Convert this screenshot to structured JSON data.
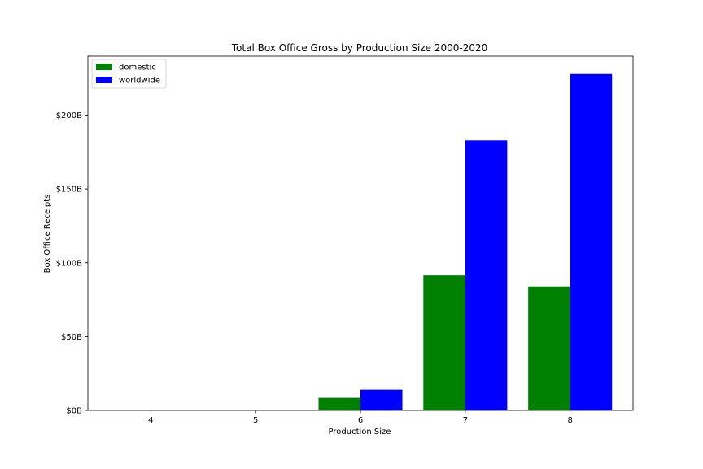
{
  "chart_data": {
    "type": "bar",
    "title": "Total Box Office Gross by Production Size 2000-2020",
    "xlabel": "Production Size",
    "ylabel": "Box Office Receipts",
    "categories": [
      "4",
      "5",
      "6",
      "7",
      "8"
    ],
    "series": [
      {
        "name": "domestic",
        "color": "#008000",
        "values": [
          0.0,
          0.0,
          8.5,
          91.5,
          84.0
        ]
      },
      {
        "name": "worldwide",
        "color": "#0000ff",
        "values": [
          0.0,
          0.0,
          14.0,
          183.0,
          228.0
        ]
      }
    ],
    "yticks": [
      0,
      50,
      100,
      150,
      200
    ],
    "ytick_labels": [
      "$0B",
      "$50B",
      "$100B",
      "$150B",
      "$200B"
    ],
    "ylim": [
      0,
      240
    ],
    "legend_position": "upper-left",
    "grid": false
  }
}
